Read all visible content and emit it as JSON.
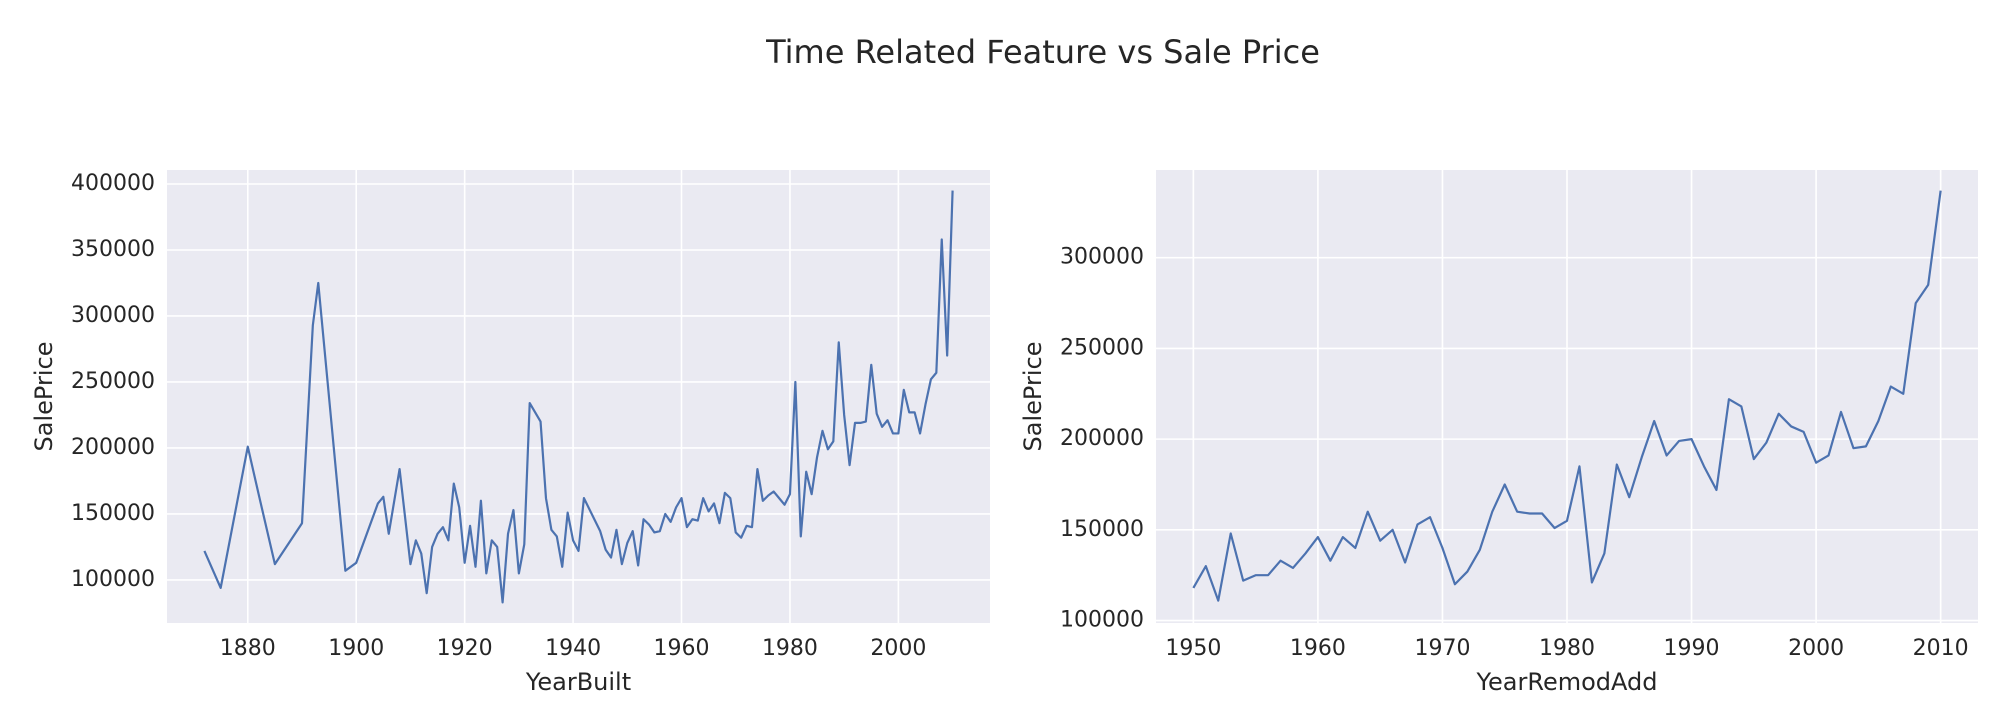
{
  "title": "Time Related Feature vs Sale Price",
  "chart_data": [
    {
      "type": "line",
      "xlabel": "YearBuilt",
      "ylabel": "SalePrice",
      "color": "#4c72b0",
      "grid": true,
      "xlim": [
        1865.1,
        2016.9
      ],
      "ylim": [
        67400,
        410600
      ],
      "xticks": [
        1880,
        1900,
        1920,
        1940,
        1960,
        1980,
        2000
      ],
      "yticks": [
        100000,
        150000,
        200000,
        250000,
        300000,
        350000,
        400000
      ],
      "x": [
        1872,
        1875,
        1880,
        1882,
        1885,
        1890,
        1892,
        1893,
        1898,
        1900,
        1904,
        1905,
        1906,
        1908,
        1910,
        1911,
        1912,
        1913,
        1914,
        1915,
        1916,
        1917,
        1918,
        1919,
        1920,
        1921,
        1922,
        1923,
        1924,
        1925,
        1926,
        1927,
        1928,
        1929,
        1930,
        1931,
        1932,
        1934,
        1935,
        1936,
        1937,
        1938,
        1939,
        1940,
        1941,
        1942,
        1945,
        1946,
        1947,
        1948,
        1949,
        1950,
        1951,
        1952,
        1953,
        1954,
        1955,
        1956,
        1957,
        1958,
        1959,
        1960,
        1961,
        1962,
        1963,
        1964,
        1965,
        1966,
        1967,
        1968,
        1969,
        1970,
        1971,
        1972,
        1973,
        1974,
        1975,
        1976,
        1977,
        1978,
        1979,
        1980,
        1981,
        1982,
        1983,
        1984,
        1985,
        1986,
        1987,
        1988,
        1989,
        1990,
        1991,
        1992,
        1993,
        1994,
        1995,
        1996,
        1997,
        1998,
        1999,
        2000,
        2001,
        2002,
        2003,
        2004,
        2005,
        2006,
        2007,
        2008,
        2009,
        2010
      ],
      "values": [
        122000,
        94000,
        201000,
        165000,
        112000,
        143000,
        293000,
        325000,
        107000,
        113000,
        158000,
        163000,
        135000,
        184000,
        112000,
        130000,
        120000,
        90000,
        125000,
        135000,
        140000,
        130000,
        173000,
        155000,
        113000,
        141000,
        110000,
        160000,
        105000,
        130000,
        125000,
        83000,
        135000,
        153000,
        105000,
        127000,
        234000,
        220000,
        162000,
        138000,
        133000,
        110000,
        151000,
        130000,
        122000,
        162000,
        137000,
        123000,
        117000,
        138000,
        112000,
        128000,
        137000,
        111000,
        146000,
        142000,
        136000,
        137000,
        150000,
        144000,
        155000,
        162000,
        140000,
        146000,
        145000,
        162000,
        152000,
        158000,
        143000,
        166000,
        162000,
        136000,
        132000,
        141000,
        140000,
        184000,
        160000,
        164000,
        167000,
        162000,
        157000,
        165000,
        250000,
        133000,
        182000,
        165000,
        193000,
        213000,
        199000,
        205000,
        280000,
        225000,
        187000,
        219000,
        219000,
        220000,
        263000,
        226000,
        216000,
        221000,
        211000,
        211000,
        244000,
        227000,
        227000,
        211000,
        233000,
        252000,
        257000,
        358000,
        270000,
        395000
      ]
    },
    {
      "type": "line",
      "xlabel": "YearRemodAdd",
      "ylabel": "SalePrice",
      "color": "#4c72b0",
      "grid": true,
      "xlim": [
        1947,
        2013
      ],
      "ylim": [
        98650,
        348350
      ],
      "xticks": [
        1950,
        1960,
        1970,
        1980,
        1990,
        2000,
        2010
      ],
      "yticks": [
        100000,
        150000,
        200000,
        250000,
        300000
      ],
      "x": [
        1950,
        1951,
        1952,
        1953,
        1954,
        1955,
        1956,
        1957,
        1958,
        1959,
        1960,
        1961,
        1962,
        1963,
        1964,
        1965,
        1966,
        1967,
        1968,
        1969,
        1970,
        1971,
        1972,
        1973,
        1974,
        1975,
        1976,
        1977,
        1978,
        1979,
        1980,
        1981,
        1982,
        1983,
        1984,
        1985,
        1986,
        1987,
        1988,
        1989,
        1990,
        1991,
        1992,
        1993,
        1994,
        1995,
        1996,
        1997,
        1998,
        1999,
        2000,
        2001,
        2002,
        2003,
        2004,
        2005,
        2006,
        2007,
        2008,
        2009,
        2010
      ],
      "values": [
        118000,
        130000,
        111000,
        148000,
        122000,
        125000,
        125000,
        133000,
        129000,
        137000,
        146000,
        133000,
        146000,
        140000,
        160000,
        144000,
        150000,
        132000,
        153000,
        157000,
        140000,
        120000,
        127000,
        139000,
        160000,
        175000,
        160000,
        159000,
        159000,
        151000,
        155000,
        185000,
        121000,
        137000,
        186000,
        168000,
        190000,
        210000,
        191000,
        199000,
        200000,
        185000,
        172000,
        222000,
        218000,
        189000,
        198000,
        214000,
        207000,
        204000,
        187000,
        191000,
        215000,
        195000,
        196000,
        210000,
        229000,
        225000,
        275000,
        285000,
        337000
      ]
    }
  ]
}
